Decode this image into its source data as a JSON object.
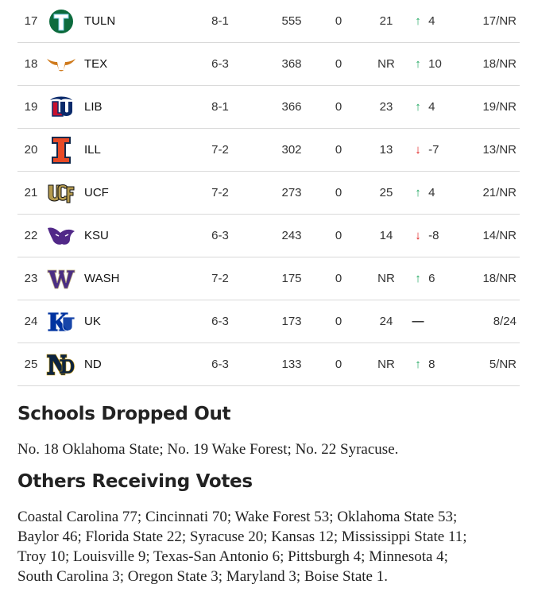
{
  "rankings": [
    {
      "rank": "17",
      "team": "TULN",
      "logo": "tulane-logo",
      "record": "8-1",
      "points": "555",
      "first_place_votes": "0",
      "previous": "21",
      "trend": "up",
      "change": "4",
      "high_low": "17/NR"
    },
    {
      "rank": "18",
      "team": "TEX",
      "logo": "texas-longhorn-logo",
      "record": "6-3",
      "points": "368",
      "first_place_votes": "0",
      "previous": "NR",
      "trend": "up",
      "change": "10",
      "high_low": "18/NR"
    },
    {
      "rank": "19",
      "team": "LIB",
      "logo": "liberty-logo",
      "record": "8-1",
      "points": "366",
      "first_place_votes": "0",
      "previous": "23",
      "trend": "up",
      "change": "4",
      "high_low": "19/NR"
    },
    {
      "rank": "20",
      "team": "ILL",
      "logo": "illinois-logo",
      "record": "7-2",
      "points": "302",
      "first_place_votes": "0",
      "previous": "13",
      "trend": "down",
      "change": "-7",
      "high_low": "13/NR"
    },
    {
      "rank": "21",
      "team": "UCF",
      "logo": "ucf-logo",
      "record": "7-2",
      "points": "273",
      "first_place_votes": "0",
      "previous": "25",
      "trend": "up",
      "change": "4",
      "high_low": "21/NR"
    },
    {
      "rank": "22",
      "team": "KSU",
      "logo": "kansas-state-logo",
      "record": "6-3",
      "points": "243",
      "first_place_votes": "0",
      "previous": "14",
      "trend": "down",
      "change": "-8",
      "high_low": "14/NR"
    },
    {
      "rank": "23",
      "team": "WASH",
      "logo": "washington-logo",
      "record": "7-2",
      "points": "175",
      "first_place_votes": "0",
      "previous": "NR",
      "trend": "up",
      "change": "6",
      "high_low": "18/NR"
    },
    {
      "rank": "24",
      "team": "UK",
      "logo": "kentucky-logo",
      "record": "6-3",
      "points": "173",
      "first_place_votes": "0",
      "previous": "24",
      "trend": "none",
      "change": "—",
      "high_low": "8/24"
    },
    {
      "rank": "25",
      "team": "ND",
      "logo": "notre-dame-logo",
      "record": "6-3",
      "points": "133",
      "first_place_votes": "0",
      "previous": "NR",
      "trend": "up",
      "change": "8",
      "high_low": "5/NR"
    }
  ],
  "colors": {
    "up": "#1fa860",
    "down": "#e01818",
    "tulane": "#0c6b3d",
    "texas": "#cf7a1c",
    "liberty": "#0a2a6b",
    "liberty_red": "#c8102e",
    "illinois": "#e84a27",
    "illinois_blue": "#13294b",
    "ucf": "#b49a4e",
    "kstate": "#512888",
    "washington": "#4b2e83",
    "kentucky": "#0033a0",
    "notredame": "#0c2340"
  },
  "dropped": {
    "heading": "Schools Dropped Out",
    "text": "No. 18 Oklahoma State; No. 19 Wake Forest; No. 22 Syracuse."
  },
  "others": {
    "heading": "Others Receiving Votes",
    "lines": [
      "Coastal Carolina 77; Cincinnati 70; Wake Forest 53; Oklahoma State 53;",
      "Baylor 46; Florida State 22; Syracuse 20; Kansas 12; Mississippi State 11;",
      "Troy 10; Louisville 9; Texas-San Antonio 6; Pittsburgh 4; Minnesota 4;",
      "South Carolina 3; Oregon State 3; Maryland 3; Boise State 1."
    ]
  }
}
